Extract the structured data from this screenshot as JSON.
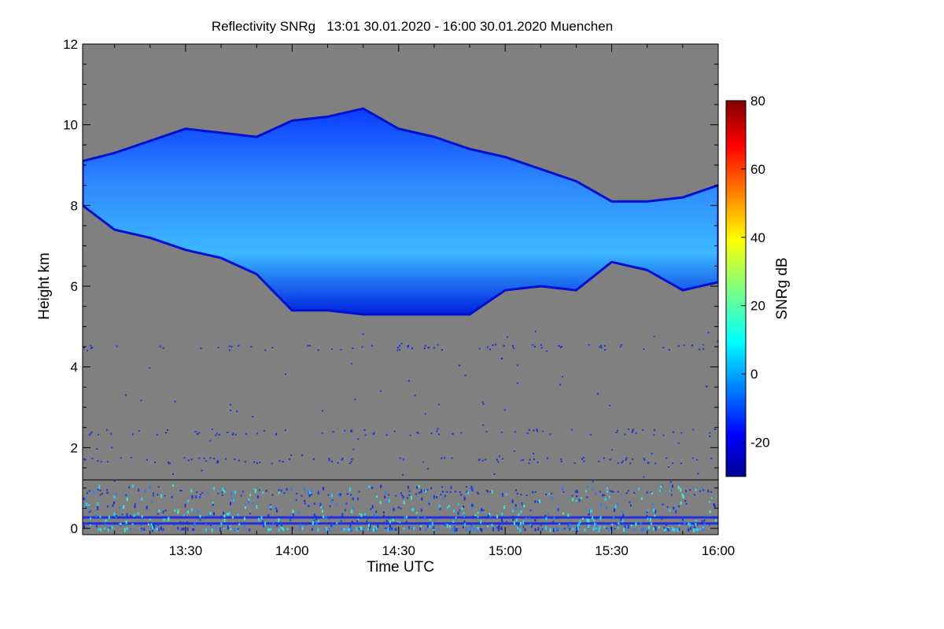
{
  "chart_data": {
    "type": "heatmap",
    "title": "Reflectivity SNRg   13:01 30.01.2020 - 16:00 30.01.2020 Muenchen",
    "xlabel": "Time UTC",
    "ylabel": "Height km",
    "xlim": [
      "13:01",
      "16:00"
    ],
    "ylim": [
      0,
      12
    ],
    "x_ticks": [
      "13:30",
      "14:00",
      "14:30",
      "15:00",
      "15:30",
      "16:00"
    ],
    "y_ticks": [
      0,
      2,
      4,
      6,
      8,
      10,
      12
    ],
    "colorbar": {
      "label": "SNRg dB",
      "range": [
        -30,
        80
      ],
      "ticks": [
        -20,
        0,
        20,
        40,
        60,
        80
      ],
      "colormap": "jet"
    },
    "background_color": "#808080",
    "cloud_layer": {
      "description": "ice cloud echo",
      "time": [
        "13:01",
        "13:10",
        "13:20",
        "13:30",
        "13:40",
        "13:50",
        "14:00",
        "14:10",
        "14:20",
        "14:30",
        "14:40",
        "14:50",
        "15:00",
        "15:10",
        "15:20",
        "15:30",
        "15:40",
        "15:50",
        "16:00"
      ],
      "top_km": [
        9.1,
        9.3,
        9.6,
        9.9,
        9.8,
        9.7,
        10.1,
        10.2,
        10.4,
        9.9,
        9.7,
        9.4,
        9.2,
        8.9,
        8.6,
        8.1,
        8.1,
        8.2,
        8.5
      ],
      "base_km": [
        8.0,
        7.4,
        7.2,
        6.9,
        6.7,
        6.3,
        5.4,
        5.4,
        5.3,
        5.3,
        5.3,
        5.3,
        5.9,
        6.0,
        5.9,
        6.6,
        6.4,
        5.9,
        6.1
      ],
      "snr_db_range": [
        -25,
        10
      ]
    },
    "horizontal_line_km": 1.2
  }
}
